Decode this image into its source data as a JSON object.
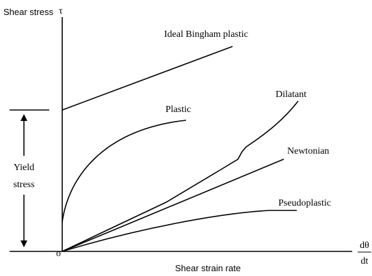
{
  "axes": {
    "y_label": "Shear stress",
    "y_symbol": "τ",
    "x_label": "Shear strain rate",
    "x_symbol_numerator": "dθ",
    "x_symbol_denominator": "dt",
    "origin": "o"
  },
  "curves": [
    {
      "label": "Ideal Bingham plastic"
    },
    {
      "label": "Plastic"
    },
    {
      "label": "Dilatant"
    },
    {
      "label": "Newtonian"
    },
    {
      "label": "Pseudoplastic"
    }
  ],
  "yield": {
    "line1": "Yield",
    "line2": "stress"
  }
}
